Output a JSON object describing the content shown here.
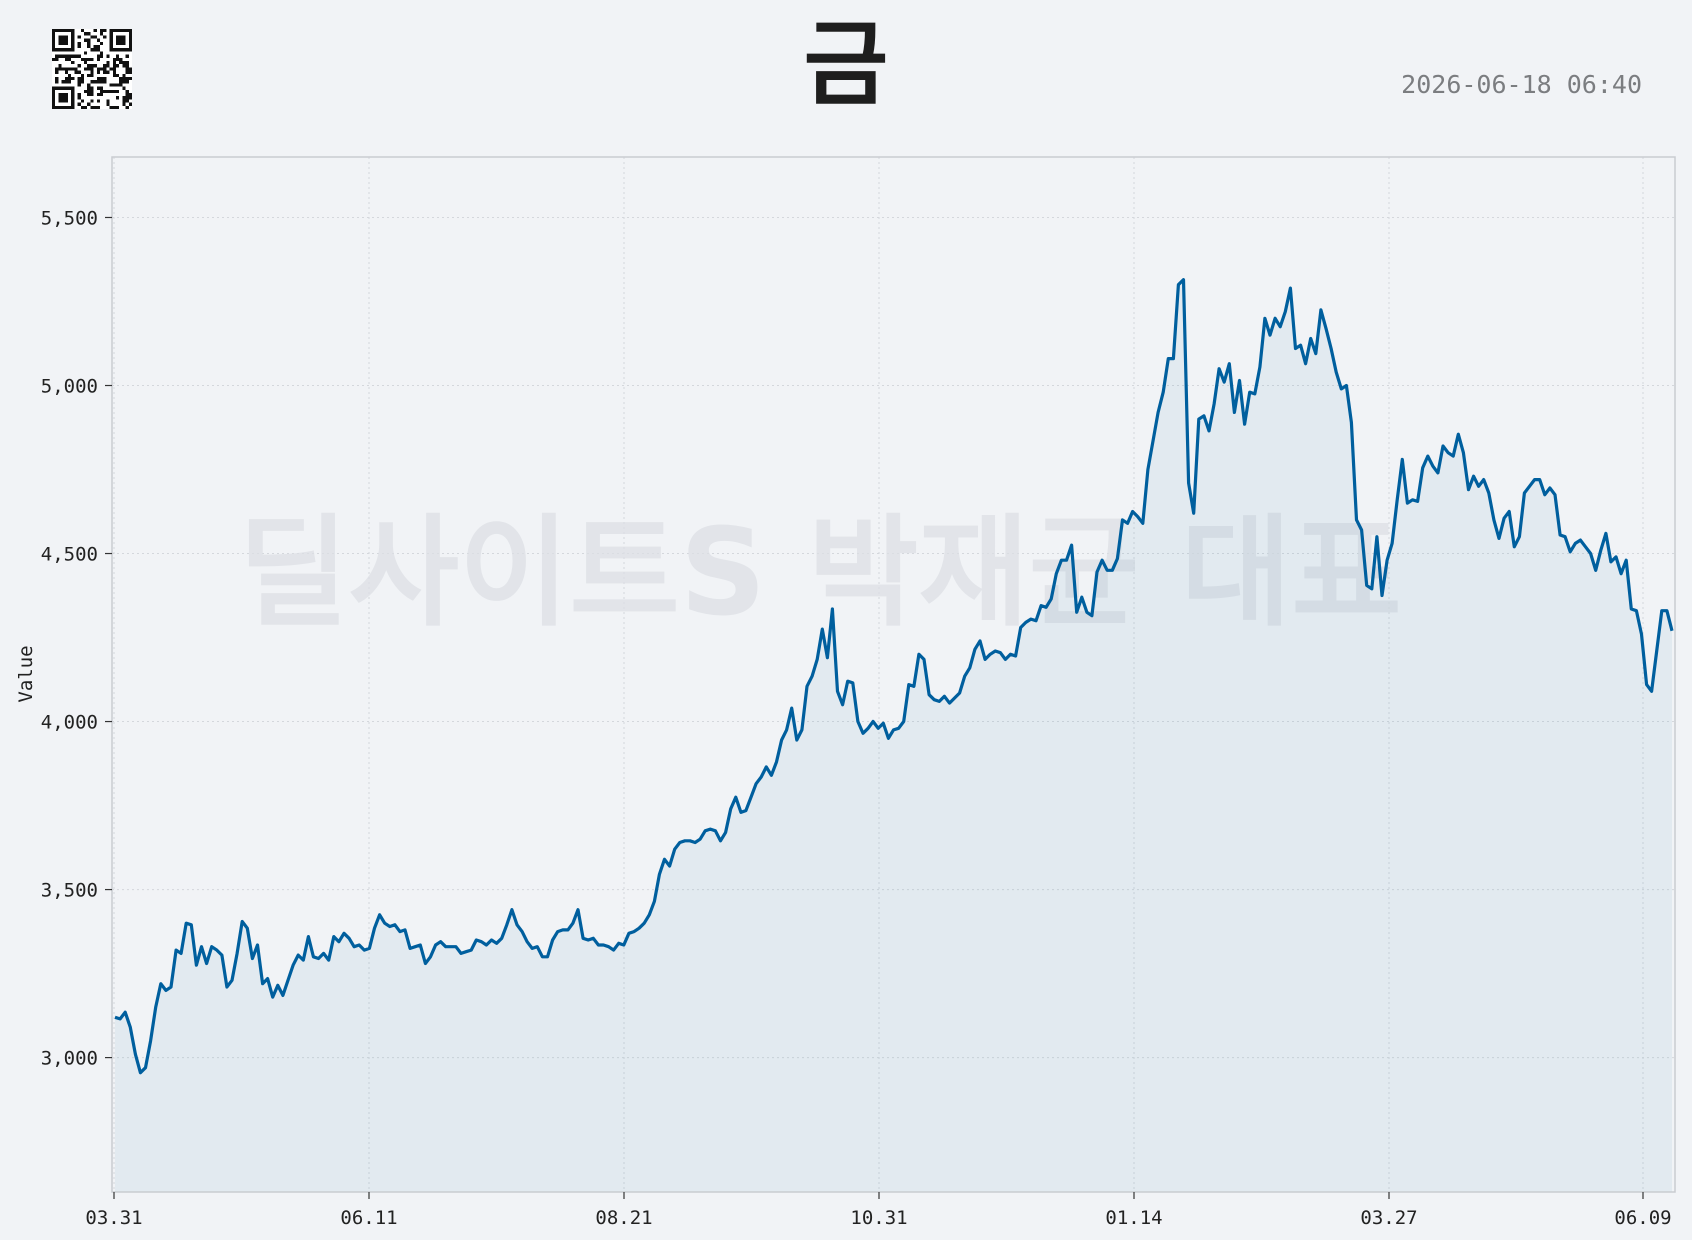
{
  "title": "금",
  "timestamp": "2026-06-18 06:40",
  "watermark": "딜사이트S 박재균 대표",
  "qr_icon": "qr-code-icon",
  "colors": {
    "background": "#f1f3f6",
    "line": "#005f9e",
    "fill": "#005f9e",
    "grid": "#d4d7dc"
  },
  "chart_data": {
    "type": "area",
    "title": "금",
    "xlabel": "",
    "ylabel": "Value",
    "x_ticks": [
      "03.31",
      "06.11",
      "08.21",
      "10.31",
      "01.14",
      "03.27",
      "06.09"
    ],
    "y_ticks": [
      "3,000",
      "3,500",
      "4,000",
      "4,500",
      "5,000",
      "5,500"
    ],
    "ylim": [
      2600,
      5680
    ],
    "grid": true,
    "series": [
      {
        "values": [
          3120,
          3115,
          3135,
          3090,
          3010,
          2955,
          2970,
          3050,
          3150,
          3220,
          3200,
          3210,
          3320,
          3310,
          3400,
          3395,
          3275,
          3330,
          3280,
          3330,
          3320,
          3305,
          3210,
          3230,
          3310,
          3405,
          3385,
          3295,
          3335,
          3220,
          3235,
          3180,
          3215,
          3185,
          3230,
          3275,
          3305,
          3290,
          3360,
          3300,
          3295,
          3310,
          3290,
          3360,
          3345,
          3370,
          3355,
          3330,
          3335,
          3320,
          3325,
          3385,
          3425,
          3400,
          3390,
          3395,
          3375,
          3380,
          3325,
          3330,
          3335,
          3280,
          3300,
          3335,
          3345,
          3330,
          3330,
          3330,
          3310,
          3315,
          3320,
          3350,
          3345,
          3335,
          3350,
          3340,
          3355,
          3395,
          3440,
          3395,
          3375,
          3345,
          3325,
          3330,
          3300,
          3300,
          3350,
          3375,
          3380,
          3380,
          3400,
          3440,
          3355,
          3350,
          3355,
          3335,
          3335,
          3330,
          3320,
          3340,
          3335,
          3370,
          3375,
          3385,
          3400,
          3425,
          3465,
          3545,
          3590,
          3570,
          3620,
          3640,
          3645,
          3645,
          3640,
          3650,
          3675,
          3680,
          3675,
          3645,
          3670,
          3740,
          3775,
          3730,
          3735,
          3775,
          3815,
          3835,
          3865,
          3840,
          3880,
          3945,
          3975,
          4040,
          3945,
          3975,
          4105,
          4135,
          4185,
          4275,
          4190,
          4335,
          4090,
          4050,
          4120,
          4115,
          4000,
          3965,
          3980,
          4000,
          3980,
          3995,
          3950,
          3975,
          3980,
          4000,
          4110,
          4105,
          4200,
          4185,
          4080,
          4065,
          4060,
          4075,
          4055,
          4070,
          4085,
          4135,
          4160,
          4215,
          4240,
          4185,
          4200,
          4210,
          4205,
          4185,
          4200,
          4195,
          4280,
          4295,
          4305,
          4300,
          4345,
          4340,
          4365,
          4440,
          4480,
          4480,
          4525,
          4325,
          4370,
          4325,
          4315,
          4445,
          4480,
          4450,
          4450,
          4485,
          4600,
          4590,
          4625,
          4610,
          4590,
          4750,
          4835,
          4920,
          4980,
          5080,
          5080,
          5300,
          5315,
          4710,
          4620,
          4900,
          4910,
          4865,
          4945,
          5050,
          5010,
          5065,
          4920,
          5015,
          4885,
          4980,
          4975,
          5055,
          5200,
          5150,
          5200,
          5175,
          5220,
          5290,
          5110,
          5120,
          5065,
          5140,
          5095,
          5225,
          5170,
          5110,
          5040,
          4990,
          5000,
          4890,
          4600,
          4570,
          4405,
          4395,
          4550,
          4375,
          4480,
          4530,
          4660,
          4780,
          4650,
          4660,
          4655,
          4755,
          4790,
          4760,
          4740,
          4820,
          4800,
          4790,
          4855,
          4800,
          4690,
          4730,
          4700,
          4720,
          4680,
          4600,
          4545,
          4605,
          4625,
          4520,
          4550,
          4680,
          4700,
          4720,
          4720,
          4675,
          4695,
          4675,
          4555,
          4550,
          4505,
          4530,
          4540,
          4520,
          4500,
          4450,
          4510,
          4560,
          4475,
          4490,
          4440,
          4480,
          4335,
          4330,
          4260,
          4110,
          4090,
          4210,
          4330,
          4330,
          4270
        ]
      }
    ]
  }
}
